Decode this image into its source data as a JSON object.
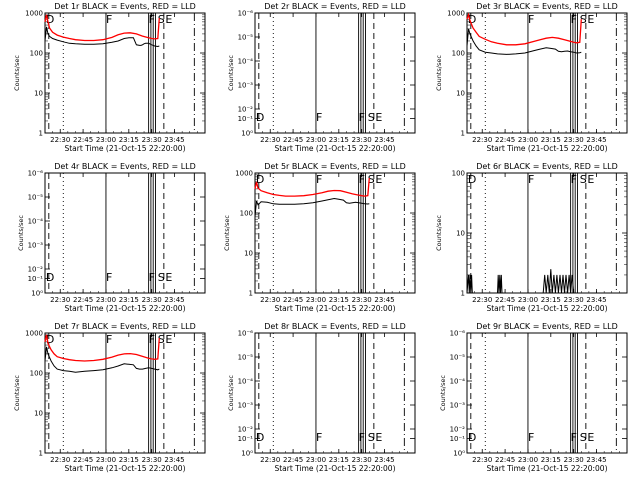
{
  "window": {
    "width_label": "640",
    "height_label": "480"
  },
  "colors": {
    "events": "#000000",
    "lld": "#ff0000",
    "background": "#ffffff"
  },
  "common": {
    "xlabel": "Start Time (21-Oct-15 22:20:00)",
    "ylabel": "Counts/sec",
    "xticks": [
      "22:30",
      "22:45",
      "23:00",
      "23:15",
      "23:30",
      "23:45"
    ],
    "x_tick_minutes": [
      10,
      25,
      40,
      55,
      70,
      85
    ],
    "x_range_minutes": [
      0,
      105
    ],
    "flags": {
      "D": "D",
      "F": "F",
      "FE": "F",
      "S": "S",
      "E": "E"
    },
    "flag_minutes": {
      "D": 0.6,
      "F": 40,
      "FE": 70,
      "S": 74,
      "E": 77
    }
  },
  "chart_data": [
    {
      "type": "line",
      "title": "Det 1r BLACK = Events, RED = LLD",
      "ylim": [
        1,
        1000
      ],
      "yticks": [
        {
          "label": "1000",
          "v": 1000
        },
        {
          "label": "100",
          "v": 100
        },
        {
          "label": "10",
          "v": 10
        },
        {
          "label": "1",
          "v": 1
        }
      ],
      "series": [
        {
          "name": "Events",
          "color": "#000000",
          "x": [
            0,
            1,
            2,
            3,
            5,
            8,
            12,
            16,
            20,
            26,
            32,
            38,
            44,
            48,
            52,
            55,
            58,
            60,
            62,
            63,
            64,
            65,
            66,
            68,
            70,
            72,
            74,
            75
          ],
          "values": [
            200,
            450,
            300,
            260,
            230,
            210,
            190,
            175,
            170,
            165,
            165,
            170,
            185,
            200,
            230,
            240,
            240,
            160,
            155,
            155,
            160,
            170,
            175,
            175,
            160,
            150,
            145,
            150
          ]
        },
        {
          "name": "LLD",
          "color": "#ff0000",
          "x": [
            0,
            1,
            2,
            3,
            5,
            8,
            12,
            16,
            20,
            26,
            32,
            38,
            44,
            48,
            52,
            56,
            60,
            64,
            68,
            70,
            72,
            74,
            75
          ],
          "values": [
            600,
            900,
            600,
            420,
            330,
            280,
            250,
            230,
            215,
            205,
            205,
            215,
            245,
            285,
            315,
            320,
            300,
            265,
            240,
            230,
            225,
            230,
            750
          ]
        }
      ]
    },
    {
      "type": "line",
      "title": "Det 2r BLACK = Events, RED = LLD",
      "ylim": [
        1,
        1e-06
      ],
      "yticks": [
        {
          "label": "10⁻⁶",
          "v": 0
        },
        {
          "label": "10⁻⁵",
          "v": 0.2
        },
        {
          "label": "10⁻⁴",
          "v": 0.4
        },
        {
          "label": "10⁻³",
          "v": 0.6
        },
        {
          "label": "10⁻²",
          "v": 0.8
        },
        {
          "label": "10⁻¹",
          "v": 0.88
        },
        {
          "label": "10⁰",
          "v": 1
        }
      ],
      "series": []
    },
    {
      "type": "line",
      "title": "Det 3r BLACK = Events, RED = LLD",
      "ylim": [
        1,
        1000
      ],
      "yticks": [
        {
          "label": "1000",
          "v": 1000
        },
        {
          "label": "100",
          "v": 100
        },
        {
          "label": "10",
          "v": 10
        },
        {
          "label": "1",
          "v": 1
        }
      ],
      "series": [
        {
          "name": "Events",
          "color": "#000000",
          "x": [
            0,
            1,
            2,
            4,
            6,
            8,
            12,
            16,
            20,
            26,
            32,
            38,
            44,
            48,
            52,
            55,
            58,
            60,
            62,
            64,
            66,
            68,
            70,
            72,
            74,
            75
          ],
          "values": [
            150,
            400,
            300,
            200,
            150,
            120,
            105,
            100,
            95,
            92,
            95,
            100,
            115,
            125,
            135,
            130,
            125,
            110,
            108,
            110,
            112,
            108,
            105,
            100,
            102,
            105
          ]
        },
        {
          "name": "LLD",
          "color": "#ff0000",
          "x": [
            0,
            1,
            2,
            4,
            6,
            8,
            12,
            16,
            20,
            26,
            32,
            38,
            44,
            48,
            52,
            56,
            60,
            64,
            68,
            70,
            72,
            74,
            75
          ],
          "values": [
            700,
            900,
            650,
            420,
            330,
            260,
            220,
            190,
            175,
            160,
            160,
            170,
            195,
            215,
            235,
            245,
            235,
            215,
            195,
            185,
            180,
            185,
            700
          ]
        }
      ]
    },
    {
      "type": "line",
      "title": "Det 4r BLACK = Events, RED = LLD",
      "ylim": [
        1,
        1e-06
      ],
      "yticks": [
        {
          "label": "10⁻⁶",
          "v": 0
        },
        {
          "label": "10⁻⁵",
          "v": 0.2
        },
        {
          "label": "10⁻⁴",
          "v": 0.4
        },
        {
          "label": "10⁻³",
          "v": 0.6
        },
        {
          "label": "10⁻²",
          "v": 0.8
        },
        {
          "label": "10⁻¹",
          "v": 0.88
        },
        {
          "label": "10⁰",
          "v": 1
        }
      ],
      "series": []
    },
    {
      "type": "line",
      "title": "Det 5r BLACK = Events, RED = LLD",
      "ylim": [
        1,
        1000
      ],
      "yticks": [
        {
          "label": "1000",
          "v": 1000
        },
        {
          "label": "100",
          "v": 100
        },
        {
          "label": "10",
          "v": 10
        },
        {
          "label": "1",
          "v": 1
        }
      ],
      "series": [
        {
          "name": "Events",
          "color": "#000000",
          "x": [
            0,
            1,
            2,
            4,
            8,
            12,
            16,
            20,
            26,
            32,
            38,
            44,
            48,
            52,
            55,
            58,
            60,
            62,
            64,
            66,
            68,
            70,
            72,
            74,
            75
          ],
          "values": [
            80,
            200,
            160,
            190,
            185,
            170,
            165,
            165,
            165,
            170,
            180,
            200,
            215,
            230,
            220,
            210,
            180,
            175,
            180,
            185,
            180,
            175,
            170,
            168,
            170
          ]
        },
        {
          "name": "LLD",
          "color": "#ff0000",
          "x": [
            0,
            1,
            2,
            4,
            8,
            12,
            16,
            20,
            26,
            32,
            38,
            44,
            48,
            52,
            56,
            60,
            64,
            68,
            70,
            72,
            74,
            75
          ],
          "values": [
            400,
            600,
            420,
            360,
            320,
            290,
            275,
            265,
            265,
            270,
            290,
            320,
            350,
            365,
            360,
            330,
            300,
            280,
            270,
            265,
            270,
            750
          ]
        }
      ]
    },
    {
      "type": "line",
      "title": "Det 6r BLACK = Events, RED = LLD",
      "ylim": [
        1,
        100
      ],
      "yticks": [
        {
          "label": "100",
          "v": 100
        },
        {
          "label": "10",
          "v": 10
        },
        {
          "label": "1",
          "v": 1
        }
      ],
      "series": [
        {
          "name": "Events",
          "color": "#000000",
          "x": [
            0,
            1,
            1.5,
            2,
            2.5,
            3,
            3.5,
            4,
            20,
            20.5,
            21,
            21.5,
            22,
            22.5,
            23,
            50,
            51,
            52,
            53,
            54,
            55,
            56,
            57,
            58,
            59,
            60,
            61,
            62,
            63,
            64,
            65,
            66,
            67,
            68,
            69,
            70
          ],
          "values": [
            1,
            2,
            1,
            2,
            1,
            2,
            1,
            1,
            1,
            2,
            1,
            2,
            1,
            2,
            1,
            1,
            2,
            1,
            2,
            1,
            2.5,
            1,
            2,
            1,
            2,
            1,
            2,
            1,
            2,
            1,
            2,
            1,
            2,
            1,
            2,
            1
          ]
        }
      ]
    },
    {
      "type": "line",
      "title": "Det 7r BLACK = Events, RED = LLD",
      "ylim": [
        1,
        1000
      ],
      "yticks": [
        {
          "label": "1000",
          "v": 1000
        },
        {
          "label": "100",
          "v": 100
        },
        {
          "label": "10",
          "v": 10
        },
        {
          "label": "1",
          "v": 1
        }
      ],
      "series": [
        {
          "name": "Events",
          "color": "#000000",
          "x": [
            0,
            1,
            2,
            4,
            6,
            8,
            12,
            16,
            20,
            26,
            32,
            38,
            44,
            48,
            52,
            55,
            58,
            60,
            62,
            64,
            66,
            68,
            70,
            72,
            74,
            75
          ],
          "values": [
            200,
            450,
            300,
            200,
            150,
            125,
            115,
            110,
            105,
            110,
            115,
            120,
            135,
            150,
            170,
            165,
            160,
            130,
            125,
            125,
            130,
            135,
            130,
            125,
            120,
            125
          ]
        },
        {
          "name": "LLD",
          "color": "#ff0000",
          "x": [
            0,
            1,
            2,
            4,
            6,
            8,
            12,
            16,
            20,
            26,
            32,
            38,
            44,
            48,
            52,
            56,
            60,
            64,
            68,
            70,
            72,
            74,
            75
          ],
          "values": [
            600,
            900,
            550,
            380,
            300,
            255,
            230,
            215,
            205,
            200,
            205,
            220,
            250,
            280,
            300,
            305,
            290,
            260,
            235,
            225,
            220,
            225,
            750
          ]
        }
      ]
    },
    {
      "type": "line",
      "title": "Det 8r BLACK = Events, RED = LLD",
      "ylim": [
        1,
        1e-06
      ],
      "yticks": [
        {
          "label": "10⁻⁶",
          "v": 0
        },
        {
          "label": "10⁻⁵",
          "v": 0.2
        },
        {
          "label": "10⁻⁴",
          "v": 0.4
        },
        {
          "label": "10⁻³",
          "v": 0.6
        },
        {
          "label": "10⁻²",
          "v": 0.8
        },
        {
          "label": "10⁻¹",
          "v": 0.88
        },
        {
          "label": "10⁰",
          "v": 1
        }
      ],
      "series": []
    },
    {
      "type": "line",
      "title": "Det 9r BLACK = Events, RED = LLD",
      "ylim": [
        1,
        1e-06
      ],
      "yticks": [
        {
          "label": "10⁻⁶",
          "v": 0
        },
        {
          "label": "10⁻⁵",
          "v": 0.2
        },
        {
          "label": "10⁻⁴",
          "v": 0.4
        },
        {
          "label": "10⁻³",
          "v": 0.6
        },
        {
          "label": "10⁻²",
          "v": 0.8
        },
        {
          "label": "10⁻¹",
          "v": 0.88
        },
        {
          "label": "10⁰",
          "v": 1
        }
      ],
      "series": []
    }
  ]
}
